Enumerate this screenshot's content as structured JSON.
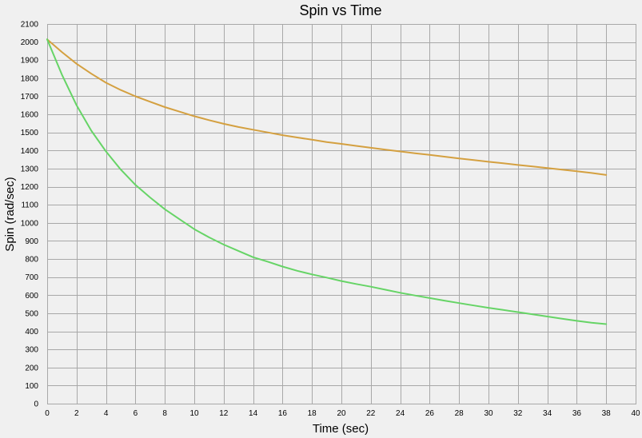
{
  "chart_data": {
    "type": "line",
    "title": "Spin vs Time",
    "xlabel": "Time (sec)",
    "ylabel": "Spin (rad/sec)",
    "xlim": [
      0,
      40
    ],
    "ylim": [
      0,
      2100
    ],
    "xticks": [
      0,
      2,
      4,
      6,
      8,
      10,
      12,
      14,
      16,
      18,
      20,
      22,
      24,
      26,
      28,
      30,
      32,
      34,
      36,
      38,
      40
    ],
    "yticks": [
      0,
      100,
      200,
      300,
      400,
      500,
      600,
      700,
      800,
      900,
      1000,
      1100,
      1200,
      1300,
      1400,
      1500,
      1600,
      1700,
      1800,
      1900,
      2000,
      2100
    ],
    "grid": true,
    "legend": "none",
    "series": [
      {
        "color": "#d4a040",
        "x": [
          0,
          1,
          2,
          3,
          4,
          5,
          6,
          7,
          8,
          9,
          10,
          11,
          12,
          13,
          14,
          15,
          16,
          17,
          18,
          19,
          20,
          21,
          22,
          23,
          24,
          25,
          26,
          27,
          28,
          29,
          30,
          31,
          32,
          33,
          34,
          35,
          36,
          37,
          38
        ],
        "values": [
          2015,
          1945,
          1880,
          1825,
          1775,
          1735,
          1700,
          1670,
          1640,
          1615,
          1590,
          1568,
          1548,
          1530,
          1515,
          1500,
          1485,
          1472,
          1460,
          1447,
          1437,
          1426,
          1415,
          1405,
          1395,
          1385,
          1376,
          1366,
          1356,
          1347,
          1338,
          1330,
          1320,
          1312,
          1303,
          1294,
          1285,
          1276,
          1265
        ]
      },
      {
        "color": "#66d466",
        "x": [
          0,
          1,
          2,
          3,
          4,
          5,
          6,
          7,
          8,
          9,
          10,
          11,
          12,
          13,
          14,
          15,
          16,
          17,
          18,
          19,
          20,
          21,
          22,
          23,
          24,
          25,
          26,
          27,
          28,
          29,
          30,
          31,
          32,
          33,
          34,
          35,
          36,
          37,
          38
        ],
        "values": [
          2015,
          1820,
          1650,
          1510,
          1395,
          1295,
          1210,
          1140,
          1075,
          1020,
          965,
          920,
          880,
          845,
          810,
          785,
          758,
          735,
          715,
          697,
          678,
          662,
          647,
          630,
          613,
          598,
          584,
          570,
          556,
          543,
          530,
          518,
          506,
          494,
          482,
          470,
          458,
          448,
          440
        ]
      }
    ]
  }
}
